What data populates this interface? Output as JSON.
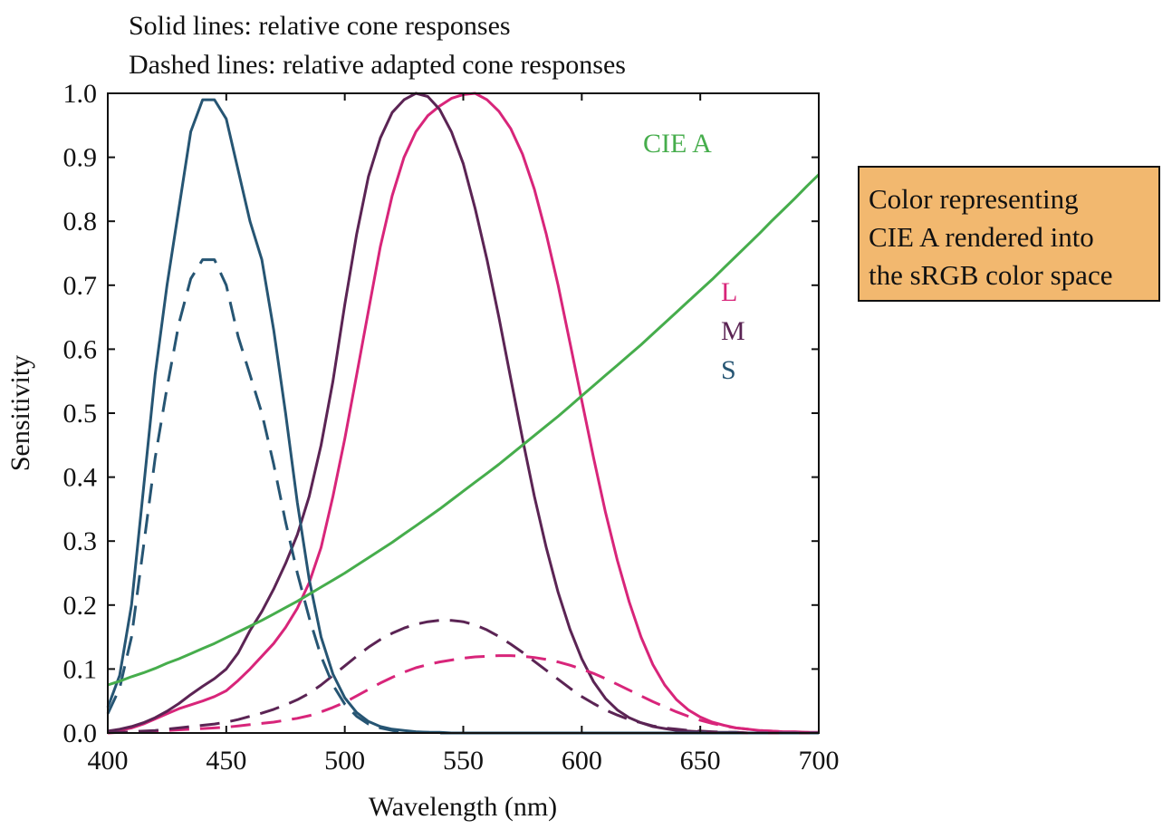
{
  "annotations": {
    "solid_lines": "Solid lines: relative cone responses",
    "dashed_lines": "Dashed lines: relative adapted cone responses",
    "cie_a_label": "CIE A",
    "legend_L": "L",
    "legend_M": "M",
    "legend_S": "S"
  },
  "note_box": {
    "lines": [
      "Color representing",
      "CIE A rendered into",
      "the sRGB color space"
    ],
    "background": "#f2b86f"
  },
  "colors": {
    "L": "#d8257a",
    "M": "#5b2454",
    "S": "#265573",
    "CIE_A": "#46ad4c"
  },
  "chart_data": {
    "type": "line",
    "title": "",
    "xlabel": "Wavelength (nm)",
    "ylabel": "Sensitivity",
    "xlim": [
      400,
      700
    ],
    "ylim": [
      0,
      1
    ],
    "xticks": [
      "400",
      "450",
      "500",
      "550",
      "600",
      "650",
      "700"
    ],
    "yticks": [
      "0.0",
      "0.1",
      "0.2",
      "0.3",
      "0.4",
      "0.5",
      "0.6",
      "0.7",
      "0.8",
      "0.9",
      "1.0"
    ],
    "grid": false,
    "x": [
      400,
      405,
      410,
      415,
      420,
      425,
      430,
      435,
      440,
      445,
      450,
      455,
      460,
      465,
      470,
      475,
      480,
      485,
      490,
      495,
      500,
      505,
      510,
      515,
      520,
      525,
      530,
      535,
      540,
      545,
      550,
      555,
      560,
      565,
      570,
      575,
      580,
      585,
      590,
      595,
      600,
      605,
      610,
      615,
      620,
      625,
      630,
      635,
      640,
      645,
      650,
      655,
      660,
      665,
      670,
      675,
      680,
      685,
      690,
      695,
      700
    ],
    "series": [
      {
        "name": "L",
        "style": "solid",
        "color": "#d8257a",
        "values": [
          0.002,
          0.004,
          0.008,
          0.014,
          0.022,
          0.03,
          0.038,
          0.044,
          0.05,
          0.057,
          0.066,
          0.082,
          0.1,
          0.12,
          0.14,
          0.165,
          0.195,
          0.235,
          0.29,
          0.37,
          0.46,
          0.56,
          0.66,
          0.76,
          0.84,
          0.9,
          0.94,
          0.965,
          0.98,
          0.992,
          0.998,
          1.0,
          0.99,
          0.972,
          0.945,
          0.905,
          0.85,
          0.78,
          0.7,
          0.61,
          0.52,
          0.43,
          0.345,
          0.27,
          0.205,
          0.15,
          0.107,
          0.075,
          0.052,
          0.036,
          0.025,
          0.017,
          0.012,
          0.008,
          0.006,
          0.004,
          0.003,
          0.002,
          0.002,
          0.001,
          0.001
        ]
      },
      {
        "name": "M",
        "style": "solid",
        "color": "#5b2454",
        "values": [
          0.003,
          0.006,
          0.01,
          0.016,
          0.024,
          0.034,
          0.046,
          0.06,
          0.073,
          0.085,
          0.1,
          0.125,
          0.16,
          0.19,
          0.225,
          0.265,
          0.31,
          0.37,
          0.45,
          0.55,
          0.67,
          0.78,
          0.87,
          0.93,
          0.97,
          0.99,
          1.0,
          0.995,
          0.975,
          0.94,
          0.89,
          0.82,
          0.74,
          0.65,
          0.555,
          0.46,
          0.37,
          0.29,
          0.22,
          0.162,
          0.116,
          0.08,
          0.054,
          0.036,
          0.024,
          0.016,
          0.01,
          0.007,
          0.004,
          0.003,
          0.002,
          0.001,
          0.001,
          0.001,
          0.0,
          0.0,
          0.0,
          0.0,
          0.0,
          0.0,
          0.0
        ]
      },
      {
        "name": "S",
        "style": "solid",
        "color": "#265573",
        "values": [
          0.04,
          0.09,
          0.2,
          0.38,
          0.56,
          0.7,
          0.82,
          0.94,
          0.99,
          0.99,
          0.96,
          0.88,
          0.8,
          0.74,
          0.63,
          0.5,
          0.36,
          0.24,
          0.15,
          0.092,
          0.055,
          0.032,
          0.018,
          0.01,
          0.006,
          0.004,
          0.002,
          0.001,
          0.001,
          0.0,
          0.0,
          0.0,
          0.0,
          0.0,
          0.0,
          0.0,
          0.0,
          0.0,
          0.0,
          0.0,
          0.0,
          0.0,
          0.0,
          0.0,
          0.0,
          0.0,
          0.0,
          0.0,
          0.0,
          0.0,
          0.0,
          0.0,
          0.0,
          0.0,
          0.0,
          0.0,
          0.0,
          0.0,
          0.0,
          0.0,
          0.0
        ]
      },
      {
        "name": "L adapted",
        "style": "dashed",
        "color": "#d8257a",
        "values": [
          0.0,
          0.001,
          0.001,
          0.002,
          0.003,
          0.004,
          0.005,
          0.006,
          0.007,
          0.008,
          0.009,
          0.011,
          0.013,
          0.015,
          0.017,
          0.02,
          0.023,
          0.027,
          0.033,
          0.04,
          0.048,
          0.058,
          0.068,
          0.078,
          0.087,
          0.095,
          0.102,
          0.107,
          0.111,
          0.114,
          0.117,
          0.119,
          0.12,
          0.121,
          0.121,
          0.12,
          0.118,
          0.115,
          0.111,
          0.106,
          0.1,
          0.093,
          0.085,
          0.076,
          0.067,
          0.058,
          0.049,
          0.041,
          0.033,
          0.026,
          0.02,
          0.015,
          0.011,
          0.008,
          0.006,
          0.004,
          0.003,
          0.002,
          0.001,
          0.001,
          0.0
        ]
      },
      {
        "name": "M adapted",
        "style": "dashed",
        "color": "#5b2454",
        "values": [
          0.001,
          0.001,
          0.002,
          0.003,
          0.004,
          0.006,
          0.008,
          0.01,
          0.012,
          0.014,
          0.017,
          0.021,
          0.026,
          0.031,
          0.037,
          0.044,
          0.052,
          0.062,
          0.075,
          0.09,
          0.105,
          0.12,
          0.134,
          0.146,
          0.156,
          0.164,
          0.17,
          0.174,
          0.176,
          0.176,
          0.174,
          0.169,
          0.161,
          0.151,
          0.139,
          0.126,
          0.112,
          0.098,
          0.084,
          0.07,
          0.057,
          0.046,
          0.036,
          0.028,
          0.021,
          0.016,
          0.011,
          0.008,
          0.006,
          0.004,
          0.003,
          0.002,
          0.001,
          0.001,
          0.0,
          0.0,
          0.0,
          0.0,
          0.0,
          0.0,
          0.0
        ]
      },
      {
        "name": "S adapted",
        "style": "dashed",
        "color": "#265573",
        "values": [
          0.03,
          0.07,
          0.15,
          0.29,
          0.43,
          0.54,
          0.64,
          0.71,
          0.74,
          0.74,
          0.7,
          0.62,
          0.56,
          0.5,
          0.42,
          0.33,
          0.25,
          0.18,
          0.12,
          0.075,
          0.045,
          0.026,
          0.014,
          0.008,
          0.004,
          0.002,
          0.001,
          0.001,
          0.0,
          0.0,
          0.0,
          0.0,
          0.0,
          0.0,
          0.0,
          0.0,
          0.0,
          0.0,
          0.0,
          0.0,
          0.0,
          0.0,
          0.0,
          0.0,
          0.0,
          0.0,
          0.0,
          0.0,
          0.0,
          0.0,
          0.0,
          0.0,
          0.0,
          0.0,
          0.0,
          0.0,
          0.0,
          0.0,
          0.0,
          0.0,
          0.0
        ]
      },
      {
        "name": "CIE A",
        "style": "solid",
        "color": "#46ad4c",
        "values": [
          0.075,
          0.081,
          0.088,
          0.094,
          0.101,
          0.109,
          0.116,
          0.124,
          0.132,
          0.14,
          0.149,
          0.158,
          0.167,
          0.176,
          0.186,
          0.196,
          0.206,
          0.217,
          0.228,
          0.239,
          0.25,
          0.262,
          0.274,
          0.286,
          0.298,
          0.311,
          0.324,
          0.337,
          0.35,
          0.364,
          0.378,
          0.392,
          0.406,
          0.42,
          0.435,
          0.45,
          0.465,
          0.48,
          0.495,
          0.511,
          0.527,
          0.543,
          0.559,
          0.575,
          0.591,
          0.607,
          0.624,
          0.641,
          0.658,
          0.675,
          0.692,
          0.709,
          0.727,
          0.745,
          0.763,
          0.781,
          0.8,
          0.818,
          0.836,
          0.855,
          0.873
        ]
      }
    ]
  }
}
